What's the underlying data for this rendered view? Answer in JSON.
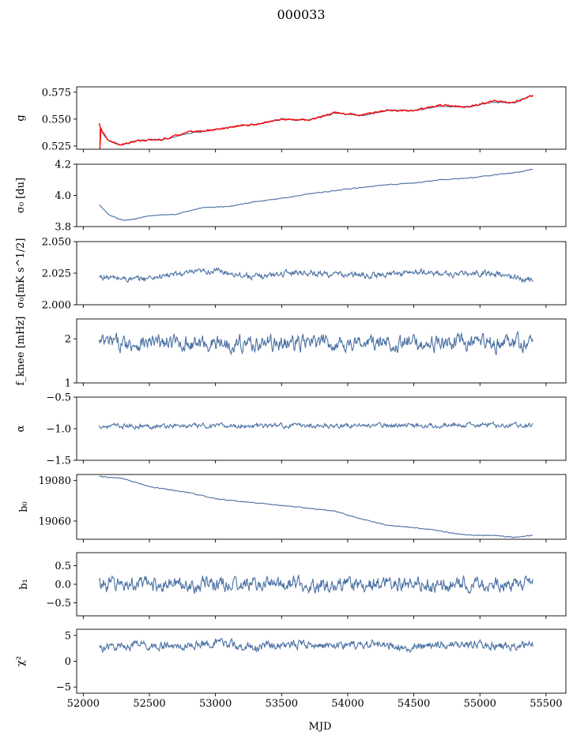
{
  "figure": {
    "title": "000033",
    "xlabel": "MJD"
  },
  "chart_data": {
    "type": "line",
    "title": "000033",
    "xlabel": "MJD",
    "xlim": [
      51950,
      55650
    ],
    "xticks": [
      52000,
      52500,
      53000,
      53500,
      54000,
      54500,
      55000,
      55500
    ],
    "series_color": "#4c72a4",
    "overlay_color": "#ff0000",
    "panels": [
      {
        "id": "g",
        "ylabel": "g",
        "ylim": [
          0.522,
          0.58
        ],
        "yticks": [
          0.525,
          0.55,
          0.575
        ],
        "ytick_labels": [
          "0.525",
          "0.550",
          "0.575"
        ],
        "x_range": [
          52120,
          55400
        ],
        "series": [
          {
            "color": "#4c72a4",
            "noise": 0.0006,
            "x": [
              52120,
              52150,
              52200,
              52280,
              52400,
              52600,
              52800,
              53000,
              53200,
              53300,
              53500,
              53700,
              53900,
              54100,
              54300,
              54500,
              54700,
              54900,
              55100,
              55250,
              55400
            ],
            "y": [
              0.545,
              0.536,
              0.529,
              0.526,
              0.53,
              0.531,
              0.537,
              0.54,
              0.544,
              0.545,
              0.55,
              0.549,
              0.556,
              0.553,
              0.558,
              0.558,
              0.562,
              0.561,
              0.566,
              0.565,
              0.572
            ]
          },
          {
            "color": "#ff0000",
            "noise": 0.0009,
            "x": [
              52120,
              52150,
              52200,
              52280,
              52400,
              52600,
              52800,
              53000,
              53200,
              53300,
              53500,
              53700,
              53900,
              54100,
              54300,
              54500,
              54700,
              54900,
              55100,
              55250,
              55400
            ],
            "y": [
              0.546,
              0.537,
              0.529,
              0.526,
              0.53,
              0.531,
              0.538,
              0.54,
              0.544,
              0.545,
              0.55,
              0.549,
              0.556,
              0.554,
              0.558,
              0.558,
              0.563,
              0.561,
              0.567,
              0.565,
              0.572
            ]
          }
        ]
      },
      {
        "id": "sigma0-du",
        "ylabel": "σ₀ [du]",
        "ylim": [
          3.8,
          4.2
        ],
        "yticks": [
          3.8,
          4.0,
          4.2
        ],
        "ytick_labels": [
          "3.8",
          "4.0",
          "4.2"
        ],
        "x_range": [
          52120,
          55400
        ],
        "series": [
          {
            "color": "#4c72a4",
            "noise": 0.003,
            "x": [
              52120,
              52200,
              52300,
              52400,
              52500,
              52700,
              52900,
              53100,
              53300,
              53500,
              53700,
              53900,
              54100,
              54300,
              54500,
              54700,
              54900,
              55100,
              55300,
              55400
            ],
            "y": [
              3.94,
              3.87,
              3.84,
              3.85,
              3.87,
              3.88,
              3.92,
              3.93,
              3.96,
              3.98,
              4.01,
              4.03,
              4.05,
              4.07,
              4.08,
              4.1,
              4.11,
              4.13,
              4.15,
              4.17
            ]
          }
        ]
      },
      {
        "id": "sigma0-mks",
        "ylabel": "σ₀[mK s^1/2]",
        "ylim": [
          2.0,
          2.05
        ],
        "yticks": [
          2.0,
          2.025,
          2.05
        ],
        "ytick_labels": [
          "2.000",
          "2.025",
          "2.050"
        ],
        "x_range": [
          52120,
          55400
        ],
        "series": [
          {
            "color": "#4c72a4",
            "noise": 0.0025,
            "x": [
              52120,
              52400,
              52700,
              53000,
              53300,
              53600,
              53900,
              54200,
              54500,
              54800,
              55100,
              55400
            ],
            "y": [
              2.022,
              2.02,
              2.024,
              2.027,
              2.022,
              2.026,
              2.024,
              2.023,
              2.026,
              2.024,
              2.025,
              2.019
            ]
          }
        ]
      },
      {
        "id": "fknee",
        "ylabel": "f_knee [mHz]",
        "ylim": [
          1.0,
          2.45
        ],
        "yticks": [
          1,
          2
        ],
        "ytick_labels": [
          "1",
          "2"
        ],
        "x_range": [
          52120,
          55400
        ],
        "series": [
          {
            "color": "#4c72a4",
            "noise": 0.2,
            "x": [
              52120,
              55400
            ],
            "y": [
              1.9,
              1.9
            ]
          }
        ]
      },
      {
        "id": "alpha",
        "ylabel": "α",
        "ylim": [
          -1.5,
          -0.5
        ],
        "yticks": [
          -1.5,
          -1.0,
          -0.5
        ],
        "ytick_labels": [
          "−1.5",
          "−1.0",
          "−0.5"
        ],
        "x_range": [
          52120,
          55400
        ],
        "series": [
          {
            "color": "#4c72a4",
            "noise": 0.04,
            "x": [
              52120,
              55400
            ],
            "y": [
              -0.96,
              -0.94
            ]
          }
        ]
      },
      {
        "id": "b0",
        "ylabel": "b₀",
        "ylim": [
          19051,
          19083
        ],
        "yticks": [
          19060,
          19080
        ],
        "ytick_labels": [
          "19060",
          "19080"
        ],
        "x_range": [
          52120,
          55400
        ],
        "series": [
          {
            "color": "#4c72a4",
            "noise": 0.25,
            "x": [
              52120,
              52300,
              52500,
              52800,
              53000,
              53300,
              53600,
              53900,
              54100,
              54300,
              54600,
              54900,
              55100,
              55250,
              55400
            ],
            "y": [
              19082,
              19081,
              19077,
              19074,
              19071,
              19069,
              19067,
              19065,
              19061,
              19058,
              19056,
              19053,
              19053,
              19052,
              19053
            ]
          }
        ]
      },
      {
        "id": "b1",
        "ylabel": "b₁",
        "ylim": [
          -0.85,
          0.85
        ],
        "yticks": [
          -0.5,
          0.0,
          0.5
        ],
        "ytick_labels": [
          "−0.5",
          "0.0",
          "0.5"
        ],
        "x_range": [
          52120,
          55400
        ],
        "series": [
          {
            "color": "#4c72a4",
            "noise": 0.22,
            "x": [
              52120,
              55400
            ],
            "y": [
              0.0,
              0.0
            ]
          }
        ]
      },
      {
        "id": "chi2",
        "ylabel": "χ²",
        "ylim": [
          -6.2,
          6.2
        ],
        "yticks": [
          -5,
          0,
          5
        ],
        "ytick_labels": [
          "−5",
          "0",
          "5"
        ],
        "x_range": [
          52120,
          55400
        ],
        "series": [
          {
            "color": "#4c72a4",
            "noise": 0.9,
            "x": [
              52120,
              52400,
              52700,
              53000,
              53300,
              53600,
              53900,
              54200,
              54500,
              54800,
              55100,
              55400
            ],
            "y": [
              2.5,
              3.2,
              2.8,
              3.6,
              2.6,
              3.4,
              3.0,
              3.3,
              2.7,
              3.5,
              3.0,
              3.2
            ]
          }
        ]
      }
    ]
  }
}
